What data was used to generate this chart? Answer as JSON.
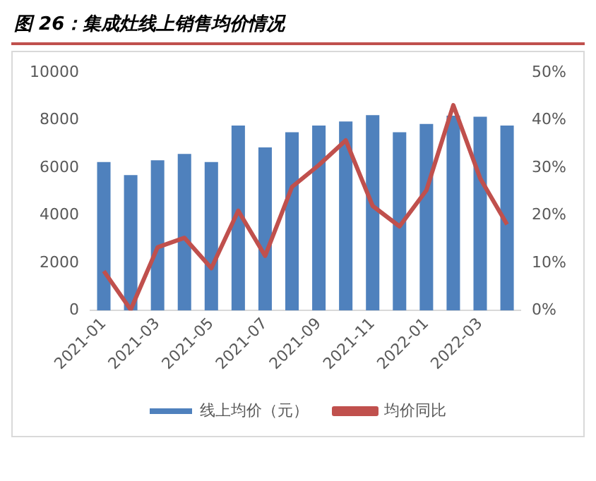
{
  "chart_data": {
    "type": "bar",
    "title": "图 26：集成灶线上销售均价情况",
    "categories": [
      "2021-01",
      null,
      "2021-03",
      null,
      "2021-05",
      null,
      "2021-07",
      null,
      "2021-09",
      null,
      "2021-11",
      null,
      "2022-01",
      null,
      "2022-03",
      null
    ],
    "series": [
      {
        "name": "线上均价（元）",
        "color": "#4f81bd",
        "values": [
          6250,
          5700,
          6320,
          6590,
          6250,
          7780,
          6860,
          7500,
          7780,
          7950,
          8220,
          7500,
          7850,
          8200,
          8150,
          7780
        ]
      },
      {
        "name": "均价同比",
        "type": "line",
        "axis": "y2",
        "color": "#c0504d",
        "marker": "none",
        "values": [
          8.3,
          0.2,
          13.3,
          15.3,
          8.9,
          21,
          11.5,
          26,
          30.6,
          35.8,
          22,
          17.7,
          25.3,
          43.2,
          27.8,
          18.1
        ]
      }
    ],
    "ylim": [
      0,
      10000
    ],
    "yticks": [
      0,
      2000,
      4000,
      6000,
      8000,
      10000
    ],
    "y2lim": [
      0,
      50
    ],
    "y2ticks": [
      {
        "value": 0,
        "label": "0%"
      },
      {
        "value": 10,
        "label": "10%"
      },
      {
        "value": 20,
        "label": "20%"
      },
      {
        "value": 30,
        "label": "30%"
      },
      {
        "value": 40,
        "label": "40%"
      },
      {
        "value": 50,
        "label": "50%"
      }
    ],
    "grid": false,
    "legend": "bottom"
  }
}
